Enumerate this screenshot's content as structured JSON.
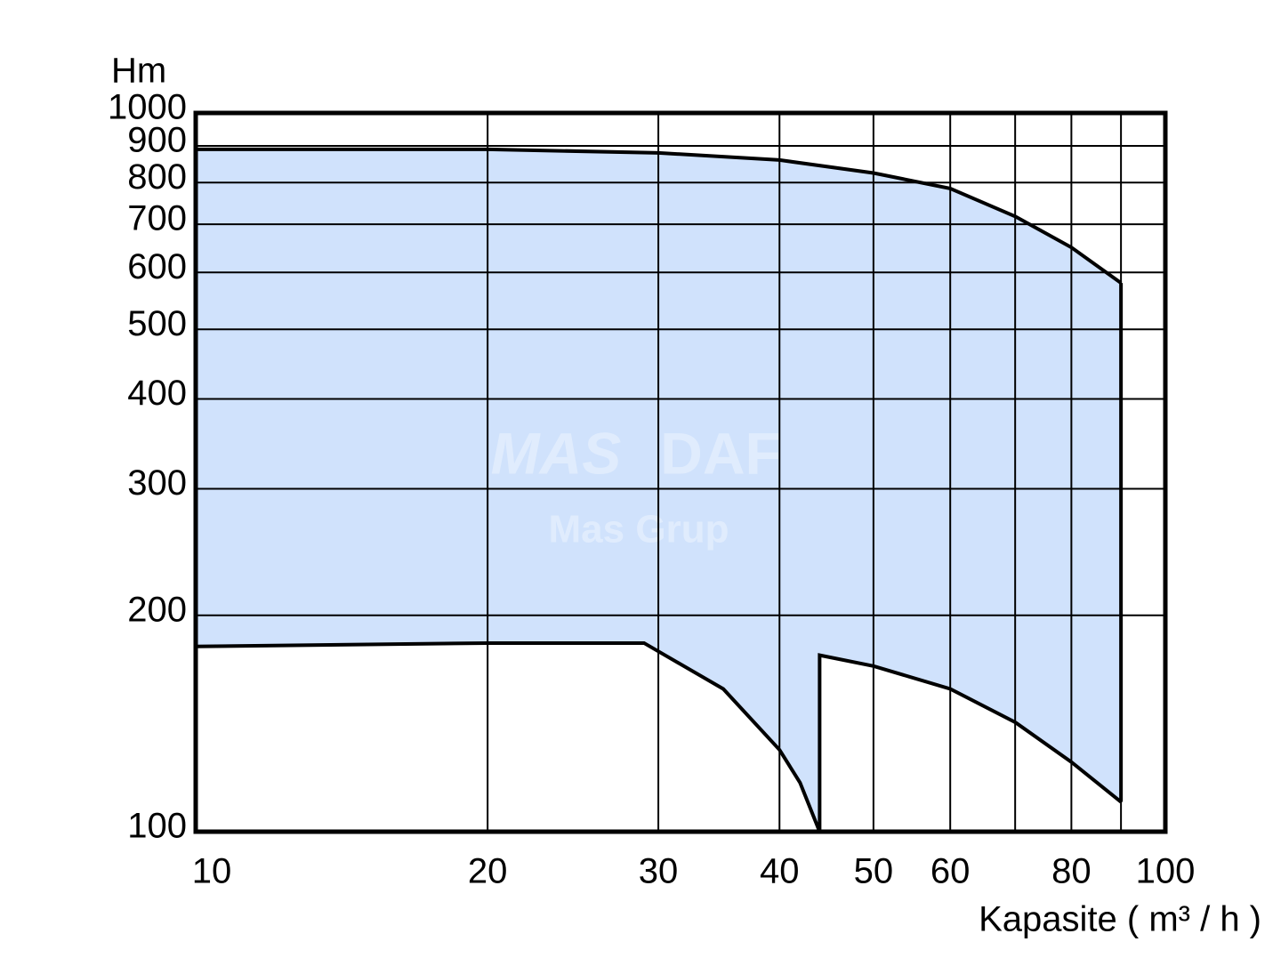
{
  "chart_data": {
    "type": "area-range",
    "y_label": "Hm",
    "x_label": "Kapasite ( m³ / h )",
    "watermark": [
      "MAS",
      "DAF",
      "Mas Grup"
    ],
    "xscale": "log",
    "yscale": "log",
    "xlim": [
      10,
      100
    ],
    "ylim": [
      100,
      1000
    ],
    "xticks": [
      10,
      20,
      30,
      40,
      50,
      60,
      80,
      100
    ],
    "x_gridlines": [
      70,
      90
    ],
    "yticks": [
      100,
      200,
      300,
      400,
      500,
      600,
      700,
      800,
      900,
      1000
    ],
    "grid": true,
    "color": "#d0e2fc",
    "upper": {
      "x": [
        10,
        20,
        30,
        40,
        50,
        60,
        70,
        80,
        90
      ],
      "y": [
        890,
        890,
        880,
        860,
        825,
        785,
        718,
        650,
        580
      ]
    },
    "lower": {
      "x": [
        10,
        20,
        29,
        35,
        40,
        42,
        44,
        44,
        50,
        60,
        70,
        80,
        90
      ],
      "y": [
        181,
        183,
        183,
        158,
        130,
        117,
        100,
        176,
        170,
        158,
        142,
        125,
        110
      ]
    }
  }
}
